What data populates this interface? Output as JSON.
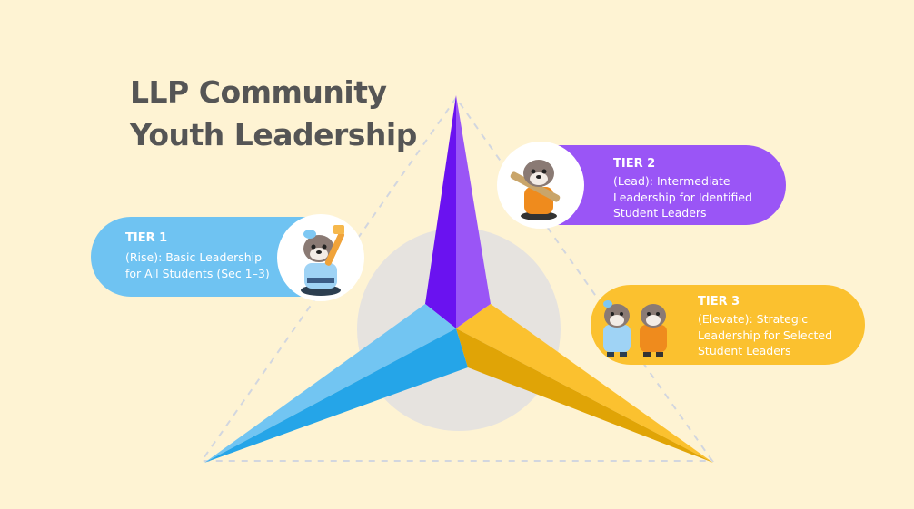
{
  "title": {
    "line1": "LLP Community",
    "line2": "Youth Leadership"
  },
  "tiers": [
    {
      "heading": "TIER 1",
      "description": "(Rise): Basic Leadership\nfor All Students (Sec 1–3)",
      "color": "#6fc3f2"
    },
    {
      "heading": "TIER 2",
      "description": "(Lead): Intermediate\nLeadership for Identified\nStudent Leaders",
      "color": "#9a55f6"
    },
    {
      "heading": "TIER 3",
      "description": "(Elevate): Strategic\nLeadership for Selected\nStudent Leaders",
      "color": "#fbc12f"
    }
  ],
  "colors": {
    "background": "#fef3d3",
    "title_text": "#555555",
    "hub_circle": "#e6e3df",
    "guide_lines": "#d2d6df",
    "tier1_blue": "#6fc3f2",
    "tier2_purple": "#9a55f6",
    "tier3_yellow": "#fbc12f"
  },
  "icons": {
    "tier1": "otter-mascot-girl-icon",
    "tier2": "otter-mascot-boy-icon",
    "tier3": "otter-mascot-pair-icon"
  }
}
